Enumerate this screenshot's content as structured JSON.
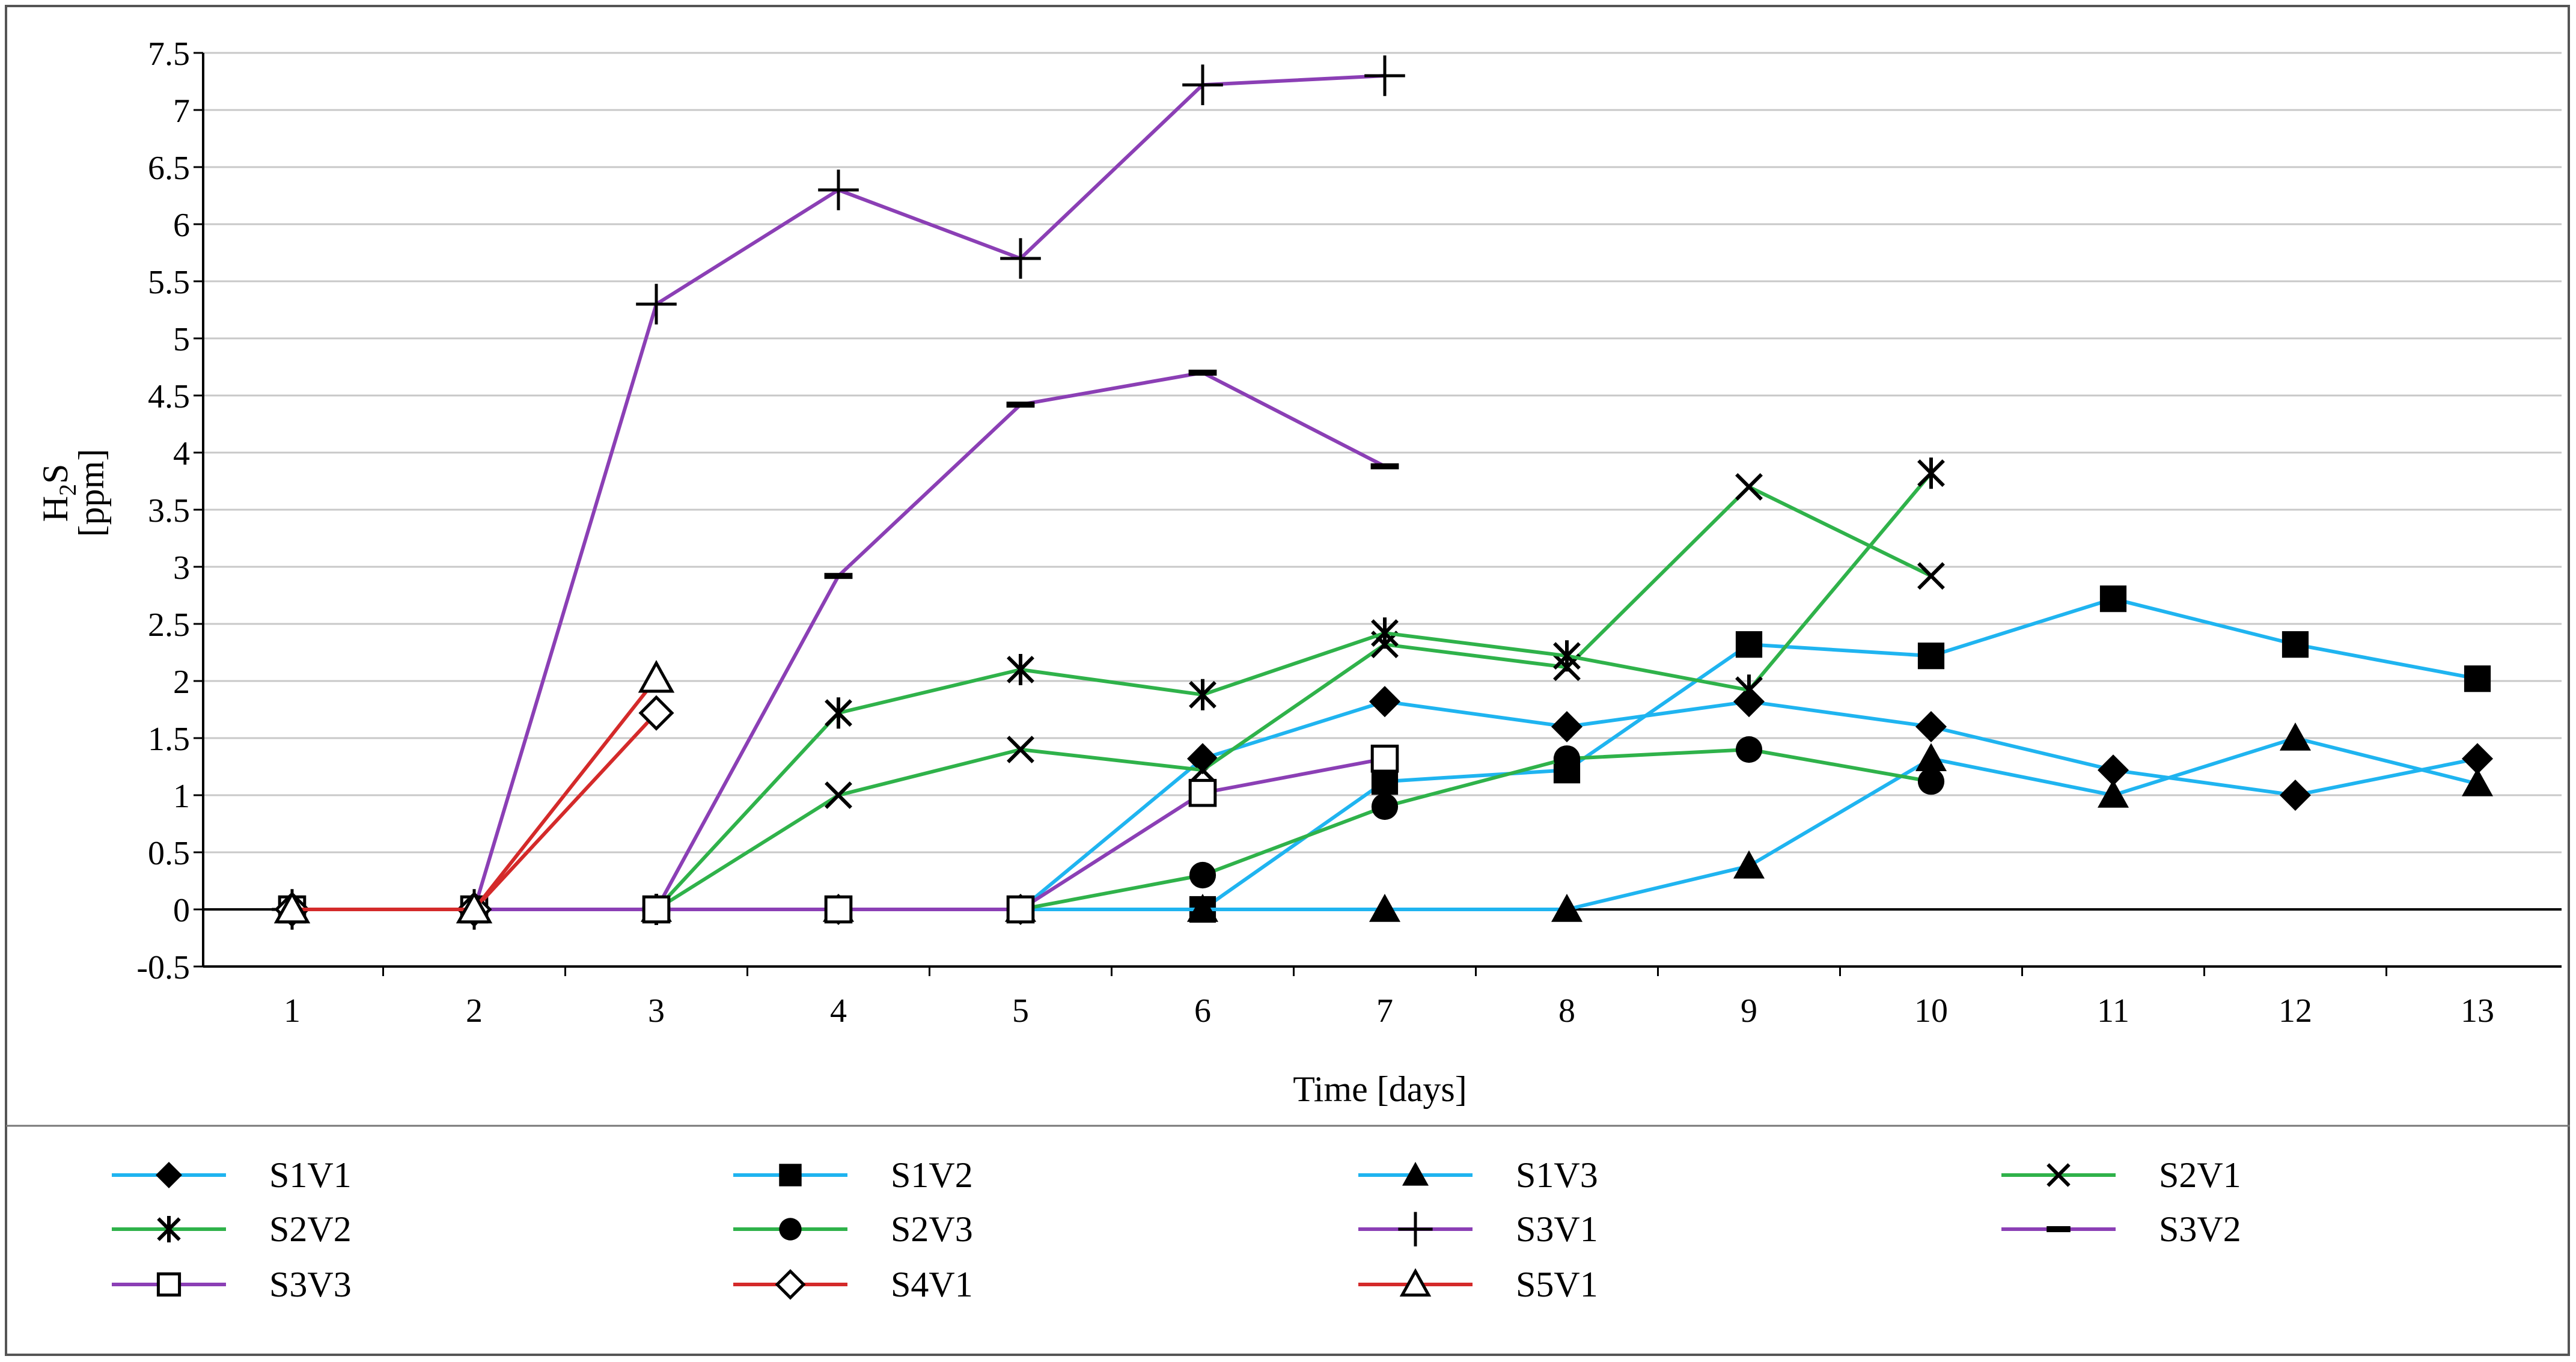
{
  "chart_data": {
    "type": "line",
    "title": "",
    "xlabel": "Time [days]",
    "ylabel_main": "H",
    "ylabel_sub": "2",
    "ylabel_tail": "S",
    "ylabel_unit": "[ppm]",
    "x_categories": [
      "1",
      "2",
      "3",
      "4",
      "5",
      "6",
      "7",
      "8",
      "9",
      "10",
      "11",
      "12",
      "13"
    ],
    "y_ticks": [
      "-0.5",
      "0",
      "0.5",
      "1",
      "1.5",
      "2",
      "2.5",
      "3",
      "3.5",
      "4",
      "4.5",
      "5",
      "5.5",
      "6",
      "6.5",
      "7",
      "7.5"
    ],
    "xlim": [
      1,
      13
    ],
    "ylim": [
      -0.5,
      7.5
    ],
    "grid": true,
    "legend_position": "bottom",
    "series": [
      {
        "name": "S1V1",
        "color": "#1fb4f0",
        "marker": "diamond",
        "x": [
          1,
          2,
          3,
          4,
          5,
          6,
          7,
          8,
          9,
          10,
          11,
          12,
          13
        ],
        "y": [
          0,
          0,
          0,
          0,
          0,
          1.32,
          1.82,
          1.6,
          1.82,
          1.6,
          1.22,
          1.0,
          1.32
        ]
      },
      {
        "name": "S1V2",
        "color": "#1fb4f0",
        "marker": "square",
        "x": [
          1,
          2,
          3,
          4,
          5,
          6,
          7,
          8,
          9,
          10,
          11,
          12,
          13
        ],
        "y": [
          0,
          0,
          0,
          0,
          0,
          0,
          1.12,
          1.22,
          2.32,
          2.22,
          2.72,
          2.32,
          2.02
        ]
      },
      {
        "name": "S1V3",
        "color": "#1fb4f0",
        "marker": "triangle",
        "x": [
          1,
          2,
          3,
          4,
          5,
          6,
          7,
          8,
          9,
          10,
          11,
          12,
          13
        ],
        "y": [
          0,
          0,
          0,
          0,
          0,
          0,
          0,
          0,
          0.38,
          1.32,
          1.0,
          1.5,
          1.1
        ]
      },
      {
        "name": "S2V1",
        "color": "#2fb24a",
        "marker": "x",
        "x": [
          1,
          2,
          3,
          4,
          5,
          6,
          7,
          8,
          9,
          10
        ],
        "y": [
          0,
          0,
          0,
          1.0,
          1.4,
          1.22,
          2.32,
          2.12,
          3.7,
          2.92
        ]
      },
      {
        "name": "S2V2",
        "color": "#2fb24a",
        "marker": "star",
        "x": [
          1,
          2,
          3,
          4,
          5,
          6,
          7,
          8,
          9,
          10
        ],
        "y": [
          0,
          0,
          0,
          1.72,
          2.1,
          1.88,
          2.42,
          2.22,
          1.92,
          3.82
        ]
      },
      {
        "name": "S2V3",
        "color": "#2fb24a",
        "marker": "circle",
        "x": [
          1,
          2,
          3,
          4,
          5,
          6,
          7,
          8,
          9,
          10
        ],
        "y": [
          0,
          0,
          0,
          0,
          0,
          0.3,
          0.9,
          1.32,
          1.4,
          1.12
        ]
      },
      {
        "name": "S3V1",
        "color": "#8b3fb5",
        "marker": "plus",
        "x": [
          1,
          2,
          3,
          4,
          5,
          6,
          7
        ],
        "y": [
          0,
          0,
          5.3,
          6.3,
          5.7,
          7.22,
          7.3
        ]
      },
      {
        "name": "S3V2",
        "color": "#8b3fb5",
        "marker": "dash",
        "x": [
          1,
          2,
          3,
          4,
          5,
          6,
          7
        ],
        "y": [
          0,
          0,
          0,
          2.92,
          4.42,
          4.7,
          3.88
        ]
      },
      {
        "name": "S3V3",
        "color": "#8b3fb5",
        "marker": "open-square",
        "x": [
          1,
          2,
          3,
          4,
          5,
          6,
          7
        ],
        "y": [
          0,
          0,
          0,
          0,
          0,
          1.02,
          1.32
        ]
      },
      {
        "name": "S4V1",
        "color": "#d42a2a",
        "marker": "open-diamond",
        "x": [
          1,
          2,
          3
        ],
        "y": [
          0,
          0,
          1.72
        ]
      },
      {
        "name": "S5V1",
        "color": "#d42a2a",
        "marker": "open-triangle",
        "x": [
          1,
          2,
          3
        ],
        "y": [
          0,
          0,
          2.02
        ]
      }
    ]
  }
}
